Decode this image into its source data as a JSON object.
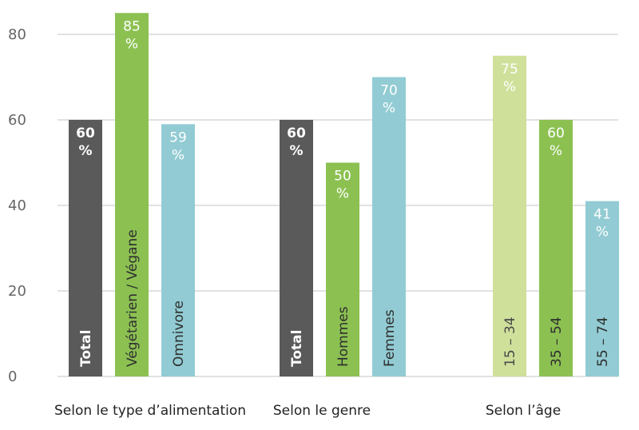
{
  "chart_data": {
    "type": "bar",
    "ylim": [
      0,
      85
    ],
    "yticks": [
      0,
      20,
      40,
      60,
      80
    ],
    "grid": true,
    "groups": [
      {
        "label": "Selon le type d’alimentation",
        "bars": [
          {
            "name": "Total",
            "value": 60,
            "value_label": "60 %",
            "color": "#5a5a5a",
            "bold": true
          },
          {
            "name": "Végétarien / Végane",
            "value": 85,
            "value_label": "85 %",
            "color": "#8cc152",
            "bold": false
          },
          {
            "name": "Omnivore",
            "value": 59,
            "value_label": "59 %",
            "color": "#92cbd3",
            "bold": false
          }
        ]
      },
      {
        "label": "Selon le genre",
        "bars": [
          {
            "name": "Total",
            "value": 60,
            "value_label": "60 %",
            "color": "#5a5a5a",
            "bold": true
          },
          {
            "name": "Hommes",
            "value": 50,
            "value_label": "50 %",
            "color": "#8cc152",
            "bold": false
          },
          {
            "name": "Femmes",
            "value": 70,
            "value_label": "70 %",
            "color": "#92cbd3",
            "bold": false
          }
        ]
      },
      {
        "label": "Selon l’âge",
        "bars": [
          {
            "name": "15 – 34",
            "value": 75,
            "value_label": "75 %",
            "color": "#cfe09b",
            "bold": false
          },
          {
            "name": "35 – 54",
            "value": 60,
            "value_label": "60 %",
            "color": "#8cc152",
            "bold": false
          },
          {
            "name": "55 – 74",
            "value": 41,
            "value_label": "41 %",
            "color": "#92cbd3",
            "bold": false
          }
        ]
      }
    ]
  }
}
